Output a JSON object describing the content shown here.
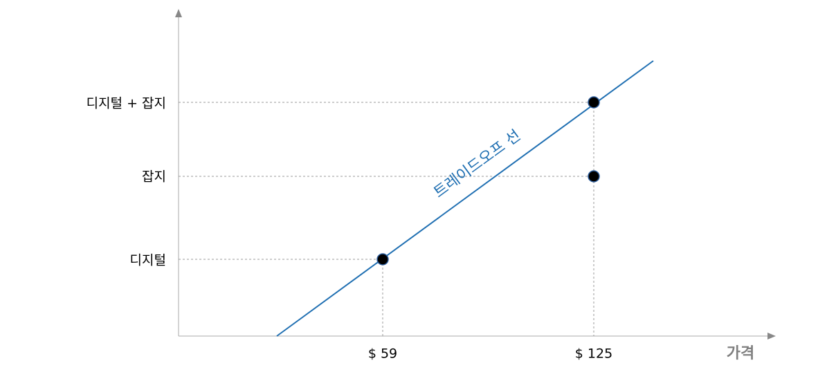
{
  "y_labels": [
    "디지털 + 잡지",
    "잡지",
    "디지털"
  ],
  "x_labels": [
    "$ 59",
    "$ 125"
  ],
  "x_axis_label": "가격",
  "line_label": "트레이드오프 선"
}
